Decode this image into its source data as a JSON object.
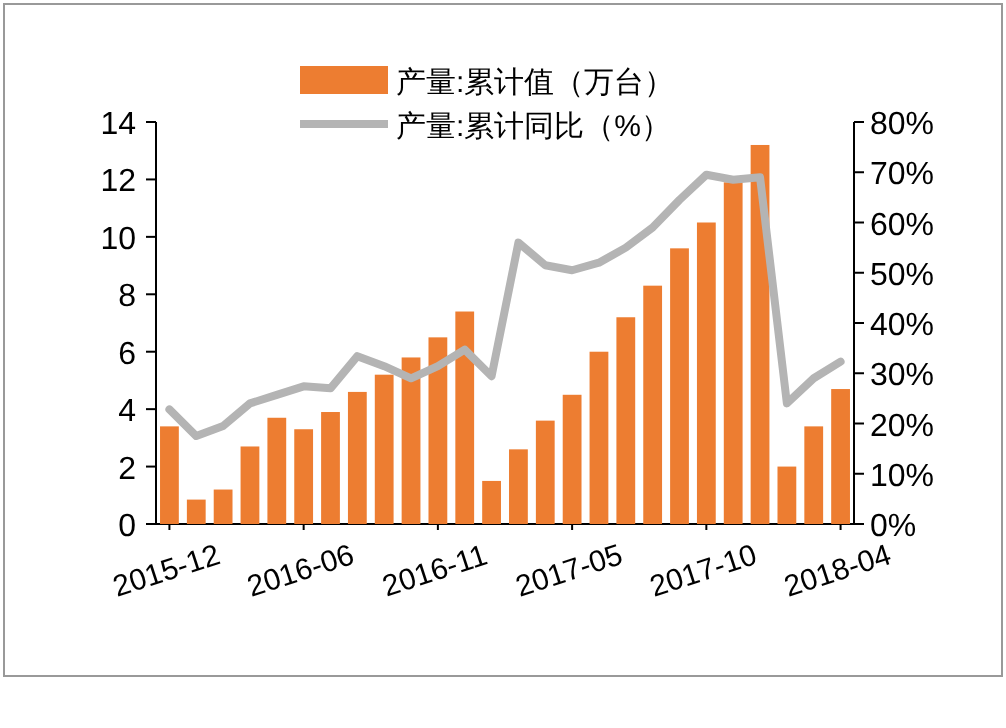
{
  "chart_data": {
    "type": "bar",
    "categories": [
      "2015-12",
      null,
      null,
      null,
      null,
      "2016-06",
      null,
      null,
      null,
      null,
      "2016-11",
      null,
      null,
      null,
      null,
      "2017-05",
      null,
      null,
      null,
      null,
      "2017-10",
      null,
      null,
      null,
      null,
      "2018-04"
    ],
    "series": [
      {
        "name": "产量:累计值（万台）",
        "color": "#ed7d31",
        "values": [
          3.4,
          0.85,
          1.2,
          2.7,
          3.7,
          3.3,
          3.9,
          4.6,
          5.2,
          5.8,
          6.5,
          7.4,
          1.5,
          2.6,
          3.6,
          4.5,
          6.0,
          7.2,
          8.3,
          9.6,
          10.5,
          11.9,
          13.2,
          2.0,
          3.4,
          4.7
        ]
      },
      {
        "name": "产量:累计同比（%）",
        "type": "line",
        "axis": "y2",
        "color": "#b4b4b4",
        "values": [
          22.8,
          17.5,
          19.5,
          24,
          25.7,
          27.4,
          27,
          33.4,
          31.4,
          29,
          31.4,
          34.7,
          29.4,
          56,
          51.5,
          50.5,
          52,
          55,
          59,
          64.5,
          69.5,
          68.5,
          69,
          24,
          29,
          32.3
        ]
      }
    ],
    "ylim": [
      0,
      14
    ],
    "yticks": [
      0,
      2,
      4,
      6,
      8,
      10,
      12,
      14
    ],
    "y2lim": [
      0,
      80
    ],
    "y2ticks": [
      {
        "value": 0,
        "label": "0%"
      },
      {
        "value": 10,
        "label": "10%"
      },
      {
        "value": 20,
        "label": "20%"
      },
      {
        "value": 30,
        "label": "30%"
      },
      {
        "value": 40,
        "label": "40%"
      },
      {
        "value": 50,
        "label": "50%"
      },
      {
        "value": 60,
        "label": "60%"
      },
      {
        "value": 70,
        "label": "70%"
      },
      {
        "value": 80,
        "label": "80%"
      }
    ],
    "grid": false,
    "legend": "top",
    "marker": "none",
    "line_style": "solid"
  }
}
